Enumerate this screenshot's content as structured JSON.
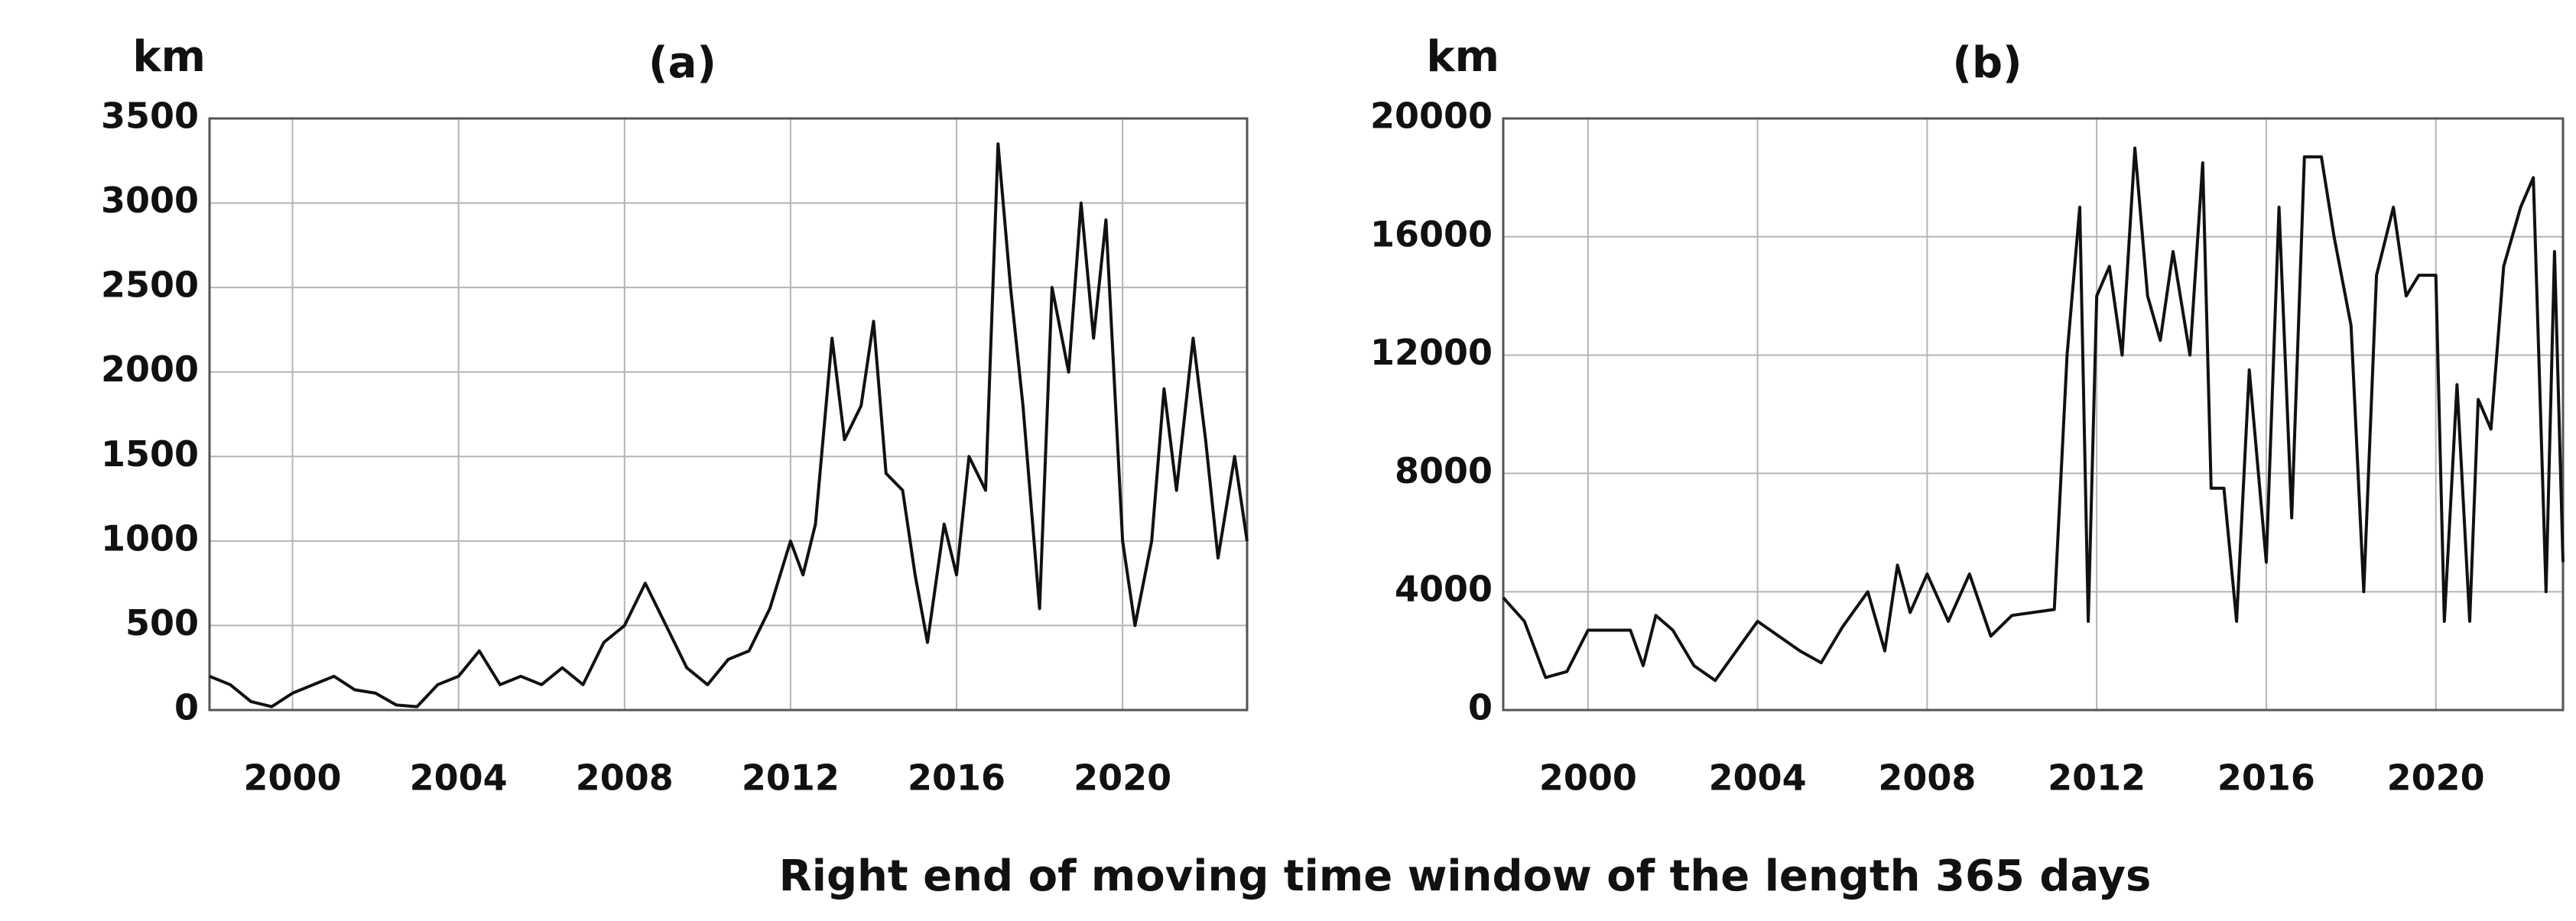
{
  "xlabel": "Right end of moving time window of the length 365 days",
  "chart_data": [
    {
      "type": "line",
      "title": "(a)",
      "ylabel": "km",
      "color": "#111111",
      "grid": true,
      "xlim": [
        1998,
        2023
      ],
      "xticks": [
        2000,
        2004,
        2008,
        2012,
        2016,
        2020
      ],
      "ylim": [
        0,
        3500
      ],
      "yticks": [
        0,
        500,
        1000,
        1500,
        2000,
        2500,
        3000,
        3500
      ],
      "x": [
        1998,
        1998.5,
        1999,
        1999.5,
        2000,
        2000.5,
        2001,
        2001.5,
        2002,
        2002.5,
        2003,
        2003.5,
        2004,
        2004.5,
        2005,
        2005.5,
        2006,
        2006.5,
        2007,
        2007.5,
        2008,
        2008.5,
        2009,
        2009.5,
        2010,
        2010.5,
        2011,
        2011.5,
        2012,
        2012.3,
        2012.6,
        2013,
        2013.3,
        2013.7,
        2014,
        2014.3,
        2014.7,
        2015,
        2015.3,
        2015.7,
        2016,
        2016.3,
        2016.7,
        2017,
        2017.3,
        2017.6,
        2018,
        2018.3,
        2018.7,
        2019,
        2019.3,
        2019.6,
        2020,
        2020.3,
        2020.7,
        2021,
        2021.3,
        2021.7,
        2022,
        2022.3,
        2022.7,
        2023
      ],
      "values": [
        200,
        150,
        50,
        20,
        100,
        150,
        200,
        120,
        100,
        30,
        20,
        150,
        200,
        350,
        150,
        200,
        150,
        250,
        150,
        400,
        500,
        750,
        500,
        250,
        150,
        300,
        350,
        600,
        1000,
        800,
        1100,
        2200,
        1600,
        1800,
        2300,
        1400,
        1300,
        800,
        400,
        1100,
        800,
        1500,
        1300,
        3350,
        2500,
        1800,
        600,
        2500,
        2000,
        3000,
        2200,
        2900,
        1000,
        500,
        1000,
        1900,
        1300,
        2200,
        1600,
        900,
        1500,
        1000
      ]
    },
    {
      "type": "line",
      "title": "(b)",
      "ylabel": "km",
      "color": "#111111",
      "grid": true,
      "xlim": [
        1998,
        2023
      ],
      "xticks": [
        2000,
        2004,
        2008,
        2012,
        2016,
        2020
      ],
      "ylim": [
        0,
        20000
      ],
      "yticks": [
        0,
        4000,
        8000,
        12000,
        16000,
        20000
      ],
      "x": [
        1998,
        1998.5,
        1999,
        1999.5,
        2000,
        2001,
        2001.3,
        2001.6,
        2002,
        2002.5,
        2003,
        2003.5,
        2004,
        2005,
        2005.5,
        2006,
        2006.6,
        2007,
        2007.3,
        2007.6,
        2008,
        2008.5,
        2009,
        2009.5,
        2010,
        2011,
        2011.3,
        2011.6,
        2011.8,
        2012,
        2012.3,
        2012.6,
        2012.9,
        2013.2,
        2013.5,
        2013.8,
        2014.2,
        2014.5,
        2014.7,
        2015,
        2015.3,
        2015.6,
        2016,
        2016.3,
        2016.6,
        2016.9,
        2017.3,
        2017.6,
        2018,
        2018.3,
        2018.6,
        2019,
        2019.3,
        2019.6,
        2020,
        2020.2,
        2020.5,
        2020.8,
        2021,
        2021.3,
        2021.6,
        2022,
        2022.3,
        2022.6,
        2022.8,
        2023
      ],
      "values": [
        3800,
        3000,
        1100,
        1300,
        2700,
        2700,
        1500,
        3200,
        2700,
        1500,
        1000,
        2000,
        3000,
        2000,
        1600,
        2800,
        4000,
        2000,
        4900,
        3300,
        4600,
        3000,
        4600,
        2500,
        3200,
        3400,
        12000,
        17000,
        3000,
        14000,
        15000,
        12000,
        19000,
        14000,
        12500,
        15500,
        12000,
        18500,
        7500,
        7500,
        3000,
        11500,
        5000,
        17000,
        6500,
        18700,
        18700,
        16000,
        13000,
        4000,
        14700,
        17000,
        14000,
        14700,
        14700,
        3000,
        11000,
        3000,
        10500,
        9500,
        15000,
        17000,
        18000,
        4000,
        15500,
        5000
      ]
    }
  ]
}
